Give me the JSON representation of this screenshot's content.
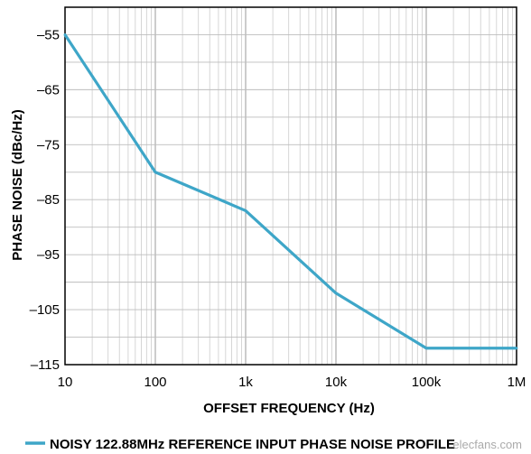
{
  "chart_data": {
    "type": "line",
    "xlabel": "OFFSET FREQUENCY (Hz)",
    "ylabel": "PHASE NOISE (dBc/Hz)",
    "xscale": "log",
    "xlim": [
      10,
      1000000
    ],
    "ylim": [
      -115,
      -50
    ],
    "x_ticks": [
      {
        "value": 10,
        "label": "10"
      },
      {
        "value": 100,
        "label": "100"
      },
      {
        "value": 1000,
        "label": "1k"
      },
      {
        "value": 10000,
        "label": "10k"
      },
      {
        "value": 100000,
        "label": "100k"
      },
      {
        "value": 1000000,
        "label": "1M"
      }
    ],
    "y_ticks": [
      {
        "value": -55,
        "label": "–55"
      },
      {
        "value": -65,
        "label": "–65"
      },
      {
        "value": -75,
        "label": "–75"
      },
      {
        "value": -85,
        "label": "–85"
      },
      {
        "value": -95,
        "label": "–95"
      },
      {
        "value": -105,
        "label": "–105"
      },
      {
        "value": -115,
        "label": "–115"
      }
    ],
    "grid": true,
    "legend_position": "bottom",
    "series": [
      {
        "name": "NOISY 122.88MHz REFERENCE INPUT PHASE NOISE PROFILE",
        "color": "#3ea6c8",
        "x": [
          10,
          100,
          1000,
          10000,
          100000,
          1000000
        ],
        "y": [
          -55,
          -80,
          -87,
          -102,
          -112,
          -112
        ]
      }
    ]
  },
  "watermark": "elecfans.com"
}
